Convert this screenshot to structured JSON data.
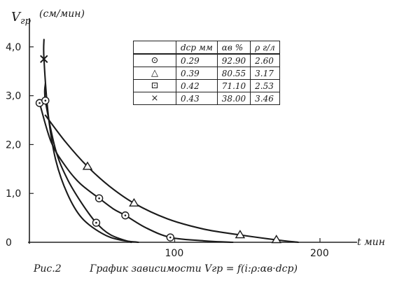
{
  "chart_data": {
    "type": "line",
    "ylabel": "V",
    "ylabel_sub": "гр",
    "yunit": "(см/мин)",
    "xlabel": "t мин",
    "xlim": [
      0,
      240
    ],
    "ylim": [
      0,
      4.5
    ],
    "xticks": [
      {
        "v": 100,
        "label": "100"
      },
      {
        "v": 200,
        "label": "200"
      }
    ],
    "yticks": [
      {
        "v": 0,
        "label": "0"
      },
      {
        "v": 1,
        "label": "1,0"
      },
      {
        "v": 2,
        "label": "2,0"
      },
      {
        "v": 3,
        "label": "3,0"
      },
      {
        "v": 4,
        "label": "4,0"
      }
    ],
    "grid": false,
    "legend_placement": "top-center",
    "legend_table": {
      "headers": [
        "",
        "dср мм",
        "αв %",
        "ρ г/л"
      ],
      "rows": [
        {
          "marker": "⊙",
          "d": "0.29",
          "a": "92.90",
          "p": "2.60"
        },
        {
          "marker": "△",
          "d": "0.39",
          "a": "80.55",
          "p": "3.17"
        },
        {
          "marker": "⊡",
          "d": "0.42",
          "a": "71.10",
          "p": "2.53"
        },
        {
          "marker": "×",
          "d": "0.43",
          "a": "38.00",
          "p": "3.46"
        }
      ]
    },
    "series": [
      {
        "marker": "circle",
        "points": [
          [
            7,
            2.85
          ],
          [
            48,
            0.9
          ],
          [
            66,
            0.55
          ],
          [
            97,
            0.1
          ]
        ],
        "curve": [
          [
            7,
            2.85
          ],
          [
            15,
            2.05
          ],
          [
            25,
            1.55
          ],
          [
            35,
            1.2
          ],
          [
            48,
            0.9
          ],
          [
            58,
            0.68
          ],
          [
            66,
            0.55
          ],
          [
            80,
            0.3
          ],
          [
            97,
            0.1
          ],
          [
            120,
            0.03
          ],
          [
            140,
            0.0
          ]
        ]
      },
      {
        "marker": "triangle",
        "points": [
          [
            40,
            1.55
          ],
          [
            72,
            0.8
          ],
          [
            145,
            0.15
          ],
          [
            170,
            0.05
          ]
        ],
        "curve": [
          [
            11,
            2.6
          ],
          [
            25,
            2.05
          ],
          [
            40,
            1.55
          ],
          [
            55,
            1.15
          ],
          [
            72,
            0.8
          ],
          [
            95,
            0.48
          ],
          [
            120,
            0.27
          ],
          [
            145,
            0.15
          ],
          [
            170,
            0.05
          ],
          [
            185,
            0.0
          ]
        ]
      },
      {
        "marker": "square-dot",
        "points": [
          [
            11,
            2.9
          ],
          [
            46,
            0.4
          ]
        ],
        "curve": [
          [
            11,
            3.25
          ],
          [
            11,
            2.9
          ],
          [
            18,
            1.9
          ],
          [
            26,
            1.3
          ],
          [
            36,
            0.8
          ],
          [
            46,
            0.4
          ],
          [
            56,
            0.15
          ],
          [
            70,
            0.0
          ]
        ]
      },
      {
        "marker": "cross",
        "points": [
          [
            10,
            3.75
          ]
        ],
        "curve": [
          [
            10,
            4.15
          ],
          [
            10,
            3.75
          ],
          [
            13,
            2.6
          ],
          [
            18,
            1.7
          ],
          [
            26,
            1.0
          ],
          [
            36,
            0.5
          ],
          [
            50,
            0.18
          ],
          [
            62,
            0.05
          ],
          [
            75,
            0.0
          ]
        ]
      }
    ]
  },
  "caption": {
    "fig": "Рис.2",
    "text": "График зависимости",
    "formula": "Vгр = f(i:ρ:αв·dср)"
  }
}
